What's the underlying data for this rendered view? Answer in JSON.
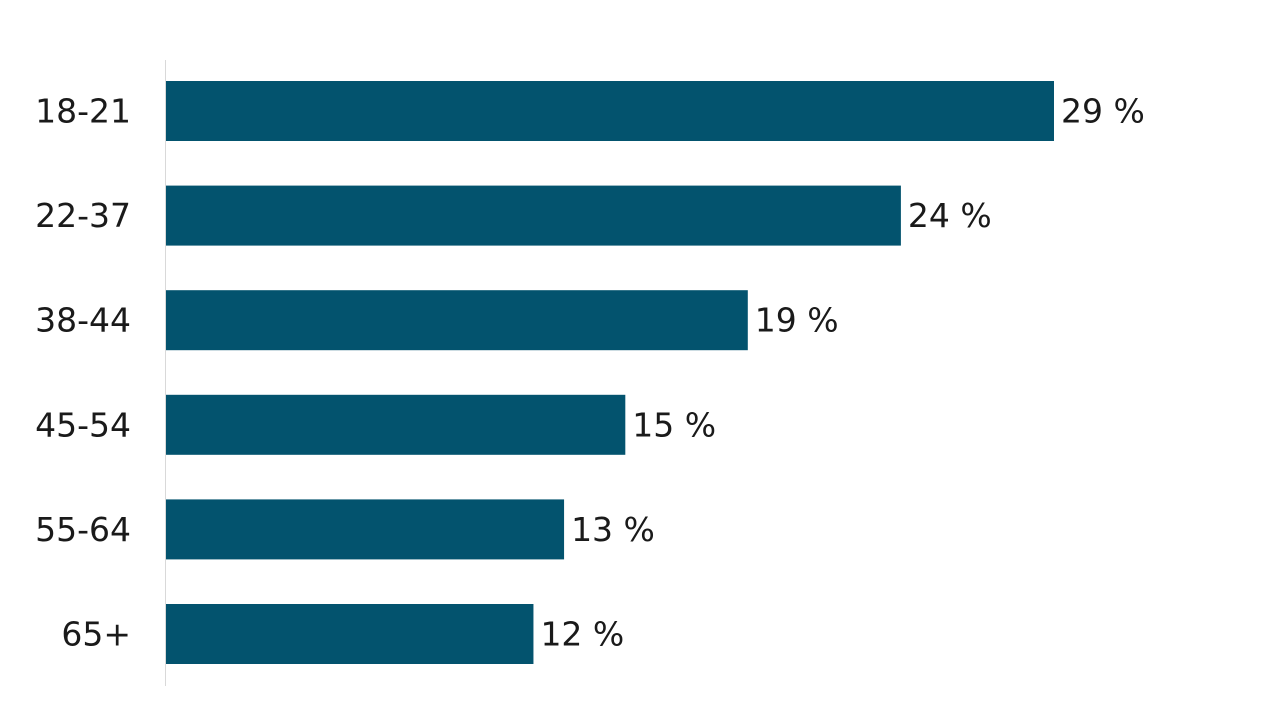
{
  "chart_data": {
    "type": "bar",
    "orientation": "horizontal",
    "categories": [
      "18-21",
      "22-37",
      "38-44",
      "45-54",
      "55-64",
      "65+"
    ],
    "values": [
      29,
      24,
      19,
      15,
      13,
      12
    ],
    "value_labels": [
      "29 %",
      "24 %",
      "19 %",
      "15 %",
      "13 %",
      "12 %"
    ],
    "unit": "%",
    "title": "",
    "xlabel": "",
    "ylabel": "",
    "xlim": [
      0,
      29
    ],
    "grid": false,
    "legend": "none",
    "bar_color": "#03536e",
    "axis_color": "#d9d9d9",
    "text_color": "#1a1a1a"
  }
}
